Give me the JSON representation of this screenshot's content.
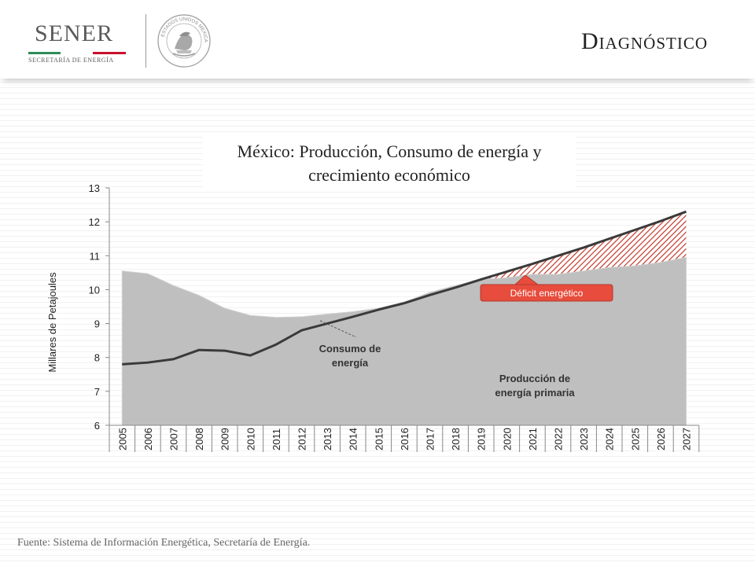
{
  "header": {
    "logo_text": "SENER",
    "logo_subtitle": "SECRETARÍA DE ENERGÍA",
    "seal_text": "ESTADOS UNIDOS MEXICANOS",
    "title_first": "D",
    "title_rest": "IAGNÓSTICO"
  },
  "chart_data": {
    "type": "area",
    "title": "México: Producción, Consumo de energía y crecimiento económico",
    "ylabel": "Millares de Petajoules",
    "xlabel": "",
    "ylim": [
      6,
      13
    ],
    "yticks": [
      6,
      7,
      8,
      9,
      10,
      11,
      12,
      13
    ],
    "x": [
      "2005",
      "2006",
      "2007",
      "2008",
      "2009",
      "2010",
      "2011",
      "2012",
      "2013",
      "2014",
      "2015",
      "2016",
      "2017",
      "2018",
      "2019",
      "2020",
      "2021",
      "2022",
      "2023",
      "2024",
      "2025",
      "2026",
      "2027"
    ],
    "series": [
      {
        "name": "Producción de energía primaria",
        "kind": "area",
        "color": "#bfbfbf",
        "values": [
          10.55,
          10.47,
          10.12,
          9.83,
          9.45,
          9.24,
          9.18,
          9.2,
          9.28,
          9.35,
          9.45,
          9.63,
          9.92,
          10.12,
          10.3,
          10.35,
          10.45,
          10.45,
          10.55,
          10.65,
          10.7,
          10.8,
          10.95
        ]
      },
      {
        "name": "Consumo de energía",
        "kind": "line",
        "color": "#3a3a3a",
        "values": [
          7.8,
          7.85,
          7.95,
          8.22,
          8.2,
          8.06,
          8.38,
          8.8,
          9.0,
          9.2,
          9.41,
          9.6,
          9.84,
          10.06,
          10.3,
          10.53,
          10.76,
          11.0,
          11.24,
          11.5,
          11.76,
          12.02,
          12.3
        ]
      }
    ],
    "annotations": {
      "consumo": [
        "Consumo de",
        "energía"
      ],
      "produccion": [
        "Producción de",
        "energía primaria"
      ],
      "deficit": "Déficit energético"
    },
    "colors": {
      "deficit_fill": "#c0392b",
      "deficit_box": "#e74c3c"
    },
    "grid": false
  },
  "footer": {
    "source": "Fuente: Sistema de Información Energética, Secretaría de Energía."
  }
}
